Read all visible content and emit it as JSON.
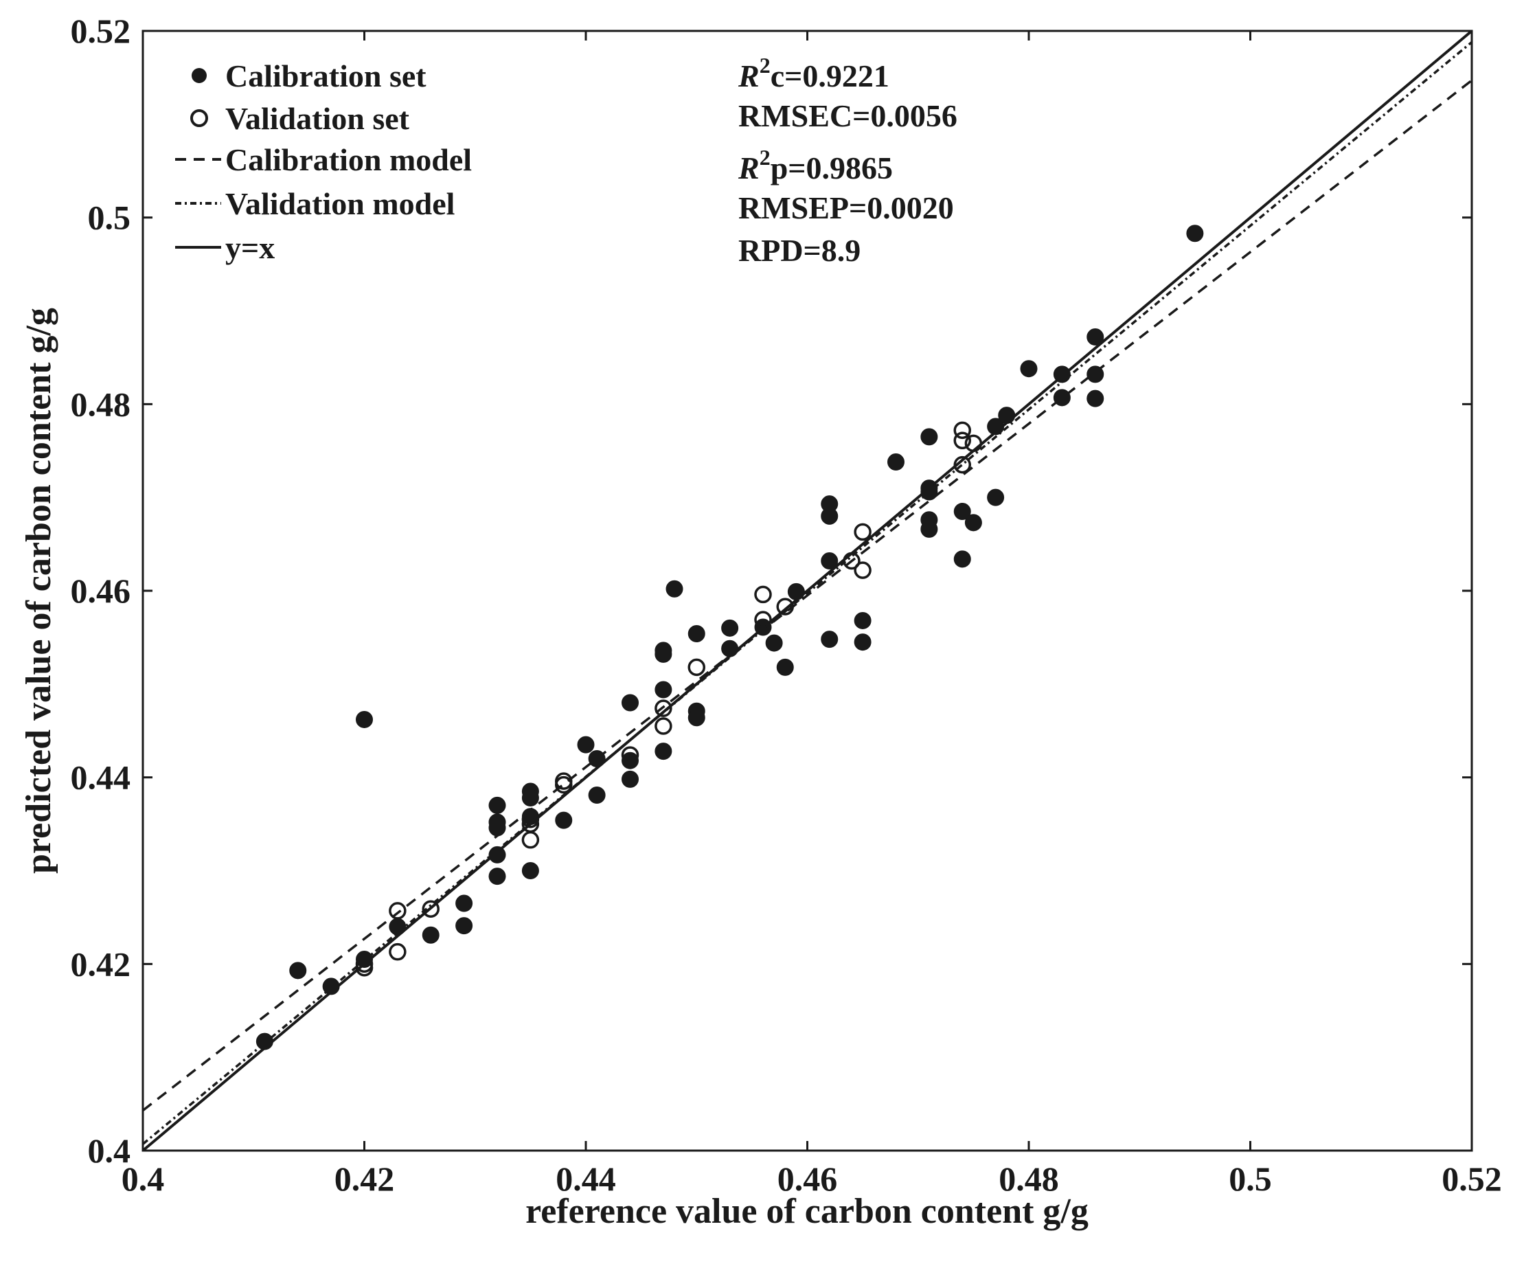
{
  "chart_data": {
    "type": "scatter",
    "title": "",
    "xlabel": "reference value of carbon content g/g",
    "ylabel": "predicted value of carbon content g/g",
    "xlim": [
      0.4,
      0.52
    ],
    "ylim": [
      0.4,
      0.52
    ],
    "xticks": [
      0.4,
      0.42,
      0.44,
      0.46,
      0.48,
      0.5,
      0.52
    ],
    "yticks": [
      0.4,
      0.42,
      0.44,
      0.46,
      0.48,
      0.5,
      0.52
    ],
    "xtick_labels": [
      "0.4",
      "0.42",
      "0.44",
      "0.46",
      "0.48",
      "0.5",
      "0.52"
    ],
    "ytick_labels": [
      "0.4",
      "0.42",
      "0.44",
      "0.46",
      "0.48",
      "0.5",
      "0.52"
    ],
    "grid": false,
    "legend_position": "top-left",
    "legend": [
      {
        "label": "Calibration set",
        "marker": "filled-circle"
      },
      {
        "label": "Validation set",
        "marker": "open-circle"
      },
      {
        "label": "Calibration model",
        "line": "dashed"
      },
      {
        "label": "Validation model",
        "line": "dash-dot"
      },
      {
        "label": "y=x",
        "line": "solid"
      }
    ],
    "stats": [
      {
        "symbol": "R",
        "sup": "2",
        "rest": "c=0.9221"
      },
      {
        "text": "RMSEC=0.0056"
      },
      {
        "symbol": "R",
        "sup": "2",
        "rest": "p=0.9865"
      },
      {
        "text": "RMSEP=0.0020"
      },
      {
        "text": "RPD=8.9"
      }
    ],
    "series": [
      {
        "name": "Calibration set",
        "points": [
          [
            0.411,
            0.4117
          ],
          [
            0.414,
            0.4193
          ],
          [
            0.417,
            0.4176
          ],
          [
            0.42,
            0.4462
          ],
          [
            0.42,
            0.4205
          ],
          [
            0.423,
            0.424
          ],
          [
            0.426,
            0.4231
          ],
          [
            0.429,
            0.4265
          ],
          [
            0.429,
            0.4241
          ],
          [
            0.432,
            0.437
          ],
          [
            0.432,
            0.4352
          ],
          [
            0.432,
            0.4346
          ],
          [
            0.432,
            0.4317
          ],
          [
            0.432,
            0.4294
          ],
          [
            0.435,
            0.4385
          ],
          [
            0.435,
            0.4378
          ],
          [
            0.435,
            0.4358
          ],
          [
            0.435,
            0.43
          ],
          [
            0.438,
            0.4354
          ],
          [
            0.44,
            0.4435
          ],
          [
            0.441,
            0.442
          ],
          [
            0.441,
            0.4381
          ],
          [
            0.444,
            0.448
          ],
          [
            0.444,
            0.4418
          ],
          [
            0.444,
            0.4398
          ],
          [
            0.447,
            0.4536
          ],
          [
            0.447,
            0.4532
          ],
          [
            0.447,
            0.4494
          ],
          [
            0.447,
            0.4428
          ],
          [
            0.448,
            0.4602
          ],
          [
            0.45,
            0.4554
          ],
          [
            0.45,
            0.4471
          ],
          [
            0.45,
            0.4464
          ],
          [
            0.453,
            0.456
          ],
          [
            0.453,
            0.4538
          ],
          [
            0.456,
            0.4561
          ],
          [
            0.457,
            0.4544
          ],
          [
            0.458,
            0.4518
          ],
          [
            0.459,
            0.4599
          ],
          [
            0.462,
            0.4693
          ],
          [
            0.462,
            0.468
          ],
          [
            0.462,
            0.4632
          ],
          [
            0.462,
            0.4548
          ],
          [
            0.465,
            0.4568
          ],
          [
            0.465,
            0.4545
          ],
          [
            0.468,
            0.4738
          ],
          [
            0.471,
            0.4765
          ],
          [
            0.471,
            0.471
          ],
          [
            0.471,
            0.4706
          ],
          [
            0.471,
            0.4676
          ],
          [
            0.471,
            0.4666
          ],
          [
            0.474,
            0.4685
          ],
          [
            0.474,
            0.4634
          ],
          [
            0.475,
            0.4673
          ],
          [
            0.477,
            0.47
          ],
          [
            0.477,
            0.4776
          ],
          [
            0.478,
            0.4788
          ],
          [
            0.48,
            0.4838
          ],
          [
            0.483,
            0.4832
          ],
          [
            0.483,
            0.4807
          ],
          [
            0.486,
            0.4872
          ],
          [
            0.486,
            0.4832
          ],
          [
            0.486,
            0.4806
          ],
          [
            0.495,
            0.4983
          ]
        ]
      },
      {
        "name": "Validation set",
        "points": [
          [
            0.42,
            0.42
          ],
          [
            0.42,
            0.4196
          ],
          [
            0.423,
            0.4257
          ],
          [
            0.423,
            0.4213
          ],
          [
            0.426,
            0.4259
          ],
          [
            0.435,
            0.4355
          ],
          [
            0.435,
            0.435
          ],
          [
            0.435,
            0.4333
          ],
          [
            0.438,
            0.4396
          ],
          [
            0.438,
            0.4392
          ],
          [
            0.444,
            0.4424
          ],
          [
            0.447,
            0.4474
          ],
          [
            0.447,
            0.4455
          ],
          [
            0.45,
            0.4518
          ],
          [
            0.456,
            0.4596
          ],
          [
            0.456,
            0.4569
          ],
          [
            0.458,
            0.4583
          ],
          [
            0.464,
            0.4632
          ],
          [
            0.465,
            0.4663
          ],
          [
            0.465,
            0.4622
          ],
          [
            0.474,
            0.4772
          ],
          [
            0.474,
            0.4761
          ],
          [
            0.474,
            0.4735
          ],
          [
            0.475,
            0.4758
          ]
        ]
      }
    ],
    "lines": [
      {
        "name": "Calibration model",
        "style": "dashed",
        "endpoints": [
          [
            0.4,
            0.4043
          ],
          [
            0.52,
            0.5147
          ]
        ]
      },
      {
        "name": "Validation model",
        "style": "dash-dot",
        "endpoints": [
          [
            0.4,
            0.4007
          ],
          [
            0.52,
            0.5188
          ]
        ]
      },
      {
        "name": "y=x",
        "style": "solid",
        "endpoints": [
          [
            0.4,
            0.4
          ],
          [
            0.52,
            0.52
          ]
        ]
      }
    ]
  }
}
